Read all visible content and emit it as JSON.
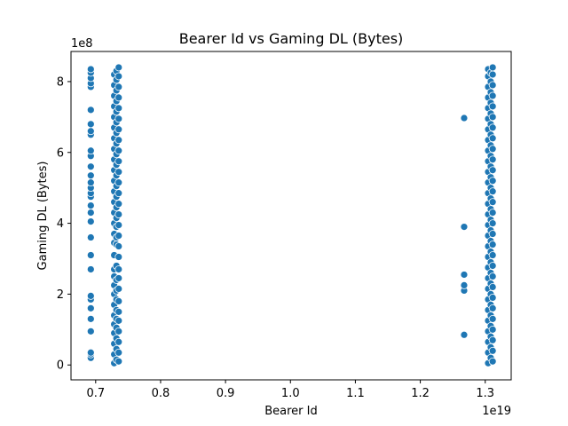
{
  "chart_data": {
    "type": "scatter",
    "title": "Bearer Id vs Gaming DL (Bytes)",
    "xlabel": "Bearer Id",
    "ylabel": "Gaming DL (Bytes)",
    "x_multiplier_label": "1e19",
    "y_multiplier_label": "1e8",
    "x_multiplier": 1e+19,
    "y_multiplier": 100000000.0,
    "xlim": [
      0.662,
      1.34
    ],
    "ylim": [
      -0.42,
      8.85
    ],
    "x_ticks": [
      0.7,
      0.8,
      0.9,
      1.0,
      1.1,
      1.2,
      1.3
    ],
    "x_tick_labels": [
      "0.7",
      "0.8",
      "0.9",
      "1.0",
      "1.1",
      "1.2",
      "1.3"
    ],
    "y_ticks": [
      0,
      2,
      4,
      6,
      8
    ],
    "y_tick_labels": [
      "0",
      "2",
      "4",
      "6",
      "8"
    ],
    "grid": false,
    "marker_color": "#1f77b4",
    "marker_edge_color": "#ffffff",
    "series": [
      {
        "points": [
          [
            0.6925,
            0.2
          ],
          [
            0.6925,
            0.3
          ],
          [
            0.6925,
            0.35
          ],
          [
            0.6925,
            0.95
          ],
          [
            0.6925,
            1.3
          ],
          [
            0.6925,
            1.6
          ],
          [
            0.6925,
            1.85
          ],
          [
            0.6925,
            1.95
          ],
          [
            0.6925,
            2.7
          ],
          [
            0.6925,
            3.1
          ],
          [
            0.6925,
            3.6
          ],
          [
            0.6925,
            4.05
          ],
          [
            0.6925,
            4.3
          ],
          [
            0.6925,
            4.5
          ],
          [
            0.6925,
            4.75
          ],
          [
            0.6925,
            4.85
          ],
          [
            0.6925,
            5.0
          ],
          [
            0.6925,
            5.15
          ],
          [
            0.6925,
            5.35
          ],
          [
            0.6925,
            5.6
          ],
          [
            0.6925,
            5.9
          ],
          [
            0.6925,
            6.05
          ],
          [
            0.6925,
            6.5
          ],
          [
            0.6925,
            6.6
          ],
          [
            0.6925,
            6.8
          ],
          [
            0.6925,
            7.2
          ],
          [
            0.6925,
            7.85
          ],
          [
            0.6925,
            7.95
          ],
          [
            0.6925,
            8.1
          ],
          [
            0.6925,
            8.25
          ],
          [
            0.6925,
            8.35
          ],
          [
            0.7285,
            0.05
          ],
          [
            0.7285,
            0.3
          ],
          [
            0.7285,
            0.6
          ],
          [
            0.7285,
            0.9
          ],
          [
            0.7285,
            1.15
          ],
          [
            0.7285,
            1.4
          ],
          [
            0.7285,
            1.7
          ],
          [
            0.7285,
            2.0
          ],
          [
            0.7285,
            2.25
          ],
          [
            0.7285,
            2.5
          ],
          [
            0.7285,
            2.7
          ],
          [
            0.7285,
            3.1
          ],
          [
            0.7285,
            3.45
          ],
          [
            0.7285,
            3.7
          ],
          [
            0.7285,
            4.0
          ],
          [
            0.7285,
            4.3
          ],
          [
            0.7285,
            4.6
          ],
          [
            0.7285,
            4.9
          ],
          [
            0.7285,
            5.2
          ],
          [
            0.7285,
            5.5
          ],
          [
            0.7285,
            5.8
          ],
          [
            0.7285,
            6.1
          ],
          [
            0.7285,
            6.4
          ],
          [
            0.7285,
            6.7
          ],
          [
            0.7285,
            7.0
          ],
          [
            0.7285,
            7.3
          ],
          [
            0.7285,
            7.6
          ],
          [
            0.7285,
            7.9
          ],
          [
            0.7285,
            8.2
          ],
          [
            0.732,
            0.15
          ],
          [
            0.732,
            0.45
          ],
          [
            0.732,
            0.75
          ],
          [
            0.732,
            1.05
          ],
          [
            0.732,
            1.3
          ],
          [
            0.732,
            1.55
          ],
          [
            0.732,
            1.85
          ],
          [
            0.732,
            2.1
          ],
          [
            0.732,
            2.4
          ],
          [
            0.732,
            2.8
          ],
          [
            0.732,
            3.4
          ],
          [
            0.732,
            3.6
          ],
          [
            0.732,
            3.9
          ],
          [
            0.732,
            4.15
          ],
          [
            0.732,
            4.45
          ],
          [
            0.732,
            4.75
          ],
          [
            0.732,
            5.05
          ],
          [
            0.732,
            5.35
          ],
          [
            0.732,
            5.65
          ],
          [
            0.732,
            5.95
          ],
          [
            0.732,
            6.25
          ],
          [
            0.732,
            6.55
          ],
          [
            0.732,
            6.85
          ],
          [
            0.732,
            7.15
          ],
          [
            0.732,
            7.45
          ],
          [
            0.732,
            7.75
          ],
          [
            0.732,
            8.05
          ],
          [
            0.732,
            8.3
          ],
          [
            0.7355,
            0.1
          ],
          [
            0.7355,
            0.35
          ],
          [
            0.7355,
            0.65
          ],
          [
            0.7355,
            0.95
          ],
          [
            0.7355,
            1.25
          ],
          [
            0.7355,
            1.5
          ],
          [
            0.7355,
            1.8
          ],
          [
            0.7355,
            2.15
          ],
          [
            0.7355,
            2.45
          ],
          [
            0.7355,
            2.7
          ],
          [
            0.7355,
            3.05
          ],
          [
            0.7355,
            3.35
          ],
          [
            0.7355,
            3.65
          ],
          [
            0.7355,
            3.95
          ],
          [
            0.7355,
            4.25
          ],
          [
            0.7355,
            4.55
          ],
          [
            0.7355,
            4.85
          ],
          [
            0.7355,
            5.15
          ],
          [
            0.7355,
            5.45
          ],
          [
            0.7355,
            5.75
          ],
          [
            0.7355,
            6.05
          ],
          [
            0.7355,
            6.35
          ],
          [
            0.7355,
            6.65
          ],
          [
            0.7355,
            6.95
          ],
          [
            0.7355,
            7.25
          ],
          [
            0.7355,
            7.55
          ],
          [
            0.7355,
            7.85
          ],
          [
            0.7355,
            8.15
          ],
          [
            0.7355,
            8.4
          ],
          [
            1.2675,
            0.85
          ],
          [
            1.2675,
            2.1
          ],
          [
            1.2675,
            2.25
          ],
          [
            1.2675,
            2.55
          ],
          [
            1.2675,
            3.9
          ],
          [
            1.2675,
            6.97
          ],
          [
            1.3045,
            0.05
          ],
          [
            1.3045,
            0.35
          ],
          [
            1.3045,
            0.65
          ],
          [
            1.3045,
            0.95
          ],
          [
            1.3045,
            1.25
          ],
          [
            1.3045,
            1.55
          ],
          [
            1.3045,
            1.85
          ],
          [
            1.3045,
            2.15
          ],
          [
            1.3045,
            2.45
          ],
          [
            1.3045,
            2.75
          ],
          [
            1.3045,
            3.05
          ],
          [
            1.3045,
            3.35
          ],
          [
            1.3045,
            3.65
          ],
          [
            1.3045,
            3.95
          ],
          [
            1.3045,
            4.25
          ],
          [
            1.3045,
            4.55
          ],
          [
            1.3045,
            4.85
          ],
          [
            1.3045,
            5.15
          ],
          [
            1.3045,
            5.45
          ],
          [
            1.3045,
            5.75
          ],
          [
            1.3045,
            6.05
          ],
          [
            1.3045,
            6.35
          ],
          [
            1.3045,
            6.65
          ],
          [
            1.3045,
            6.95
          ],
          [
            1.3045,
            7.25
          ],
          [
            1.3045,
            7.55
          ],
          [
            1.3045,
            7.85
          ],
          [
            1.3045,
            8.15
          ],
          [
            1.3045,
            8.35
          ],
          [
            1.3085,
            0.2
          ],
          [
            1.3085,
            0.5
          ],
          [
            1.3085,
            0.8
          ],
          [
            1.3085,
            1.1
          ],
          [
            1.3085,
            1.4
          ],
          [
            1.3085,
            1.7
          ],
          [
            1.3085,
            2.0
          ],
          [
            1.3085,
            2.3
          ],
          [
            1.3085,
            2.6
          ],
          [
            1.3085,
            2.9
          ],
          [
            1.3085,
            3.2
          ],
          [
            1.3085,
            3.5
          ],
          [
            1.3085,
            3.8
          ],
          [
            1.3085,
            4.1
          ],
          [
            1.3085,
            4.4
          ],
          [
            1.3085,
            4.7
          ],
          [
            1.3085,
            5.0
          ],
          [
            1.3085,
            5.3
          ],
          [
            1.3085,
            5.6
          ],
          [
            1.3085,
            5.9
          ],
          [
            1.3085,
            6.2
          ],
          [
            1.3085,
            6.5
          ],
          [
            1.3085,
            6.8
          ],
          [
            1.3085,
            7.1
          ],
          [
            1.3085,
            7.4
          ],
          [
            1.3085,
            7.7
          ],
          [
            1.3085,
            8.0
          ],
          [
            1.3085,
            8.25
          ],
          [
            1.3115,
            0.1
          ],
          [
            1.3115,
            0.4
          ],
          [
            1.3115,
            0.7
          ],
          [
            1.3115,
            1.0
          ],
          [
            1.3115,
            1.3
          ],
          [
            1.3115,
            1.6
          ],
          [
            1.3115,
            1.9
          ],
          [
            1.3115,
            2.2
          ],
          [
            1.3115,
            2.5
          ],
          [
            1.3115,
            2.8
          ],
          [
            1.3115,
            3.1
          ],
          [
            1.3115,
            3.4
          ],
          [
            1.3115,
            3.7
          ],
          [
            1.3115,
            4.0
          ],
          [
            1.3115,
            4.3
          ],
          [
            1.3115,
            4.6
          ],
          [
            1.3115,
            4.9
          ],
          [
            1.3115,
            5.2
          ],
          [
            1.3115,
            5.5
          ],
          [
            1.3115,
            5.8
          ],
          [
            1.3115,
            6.1
          ],
          [
            1.3115,
            6.4
          ],
          [
            1.3115,
            6.7
          ],
          [
            1.3115,
            7.0
          ],
          [
            1.3115,
            7.3
          ],
          [
            1.3115,
            7.6
          ],
          [
            1.3115,
            7.9
          ],
          [
            1.3115,
            8.2
          ],
          [
            1.3115,
            8.4
          ]
        ]
      }
    ]
  }
}
